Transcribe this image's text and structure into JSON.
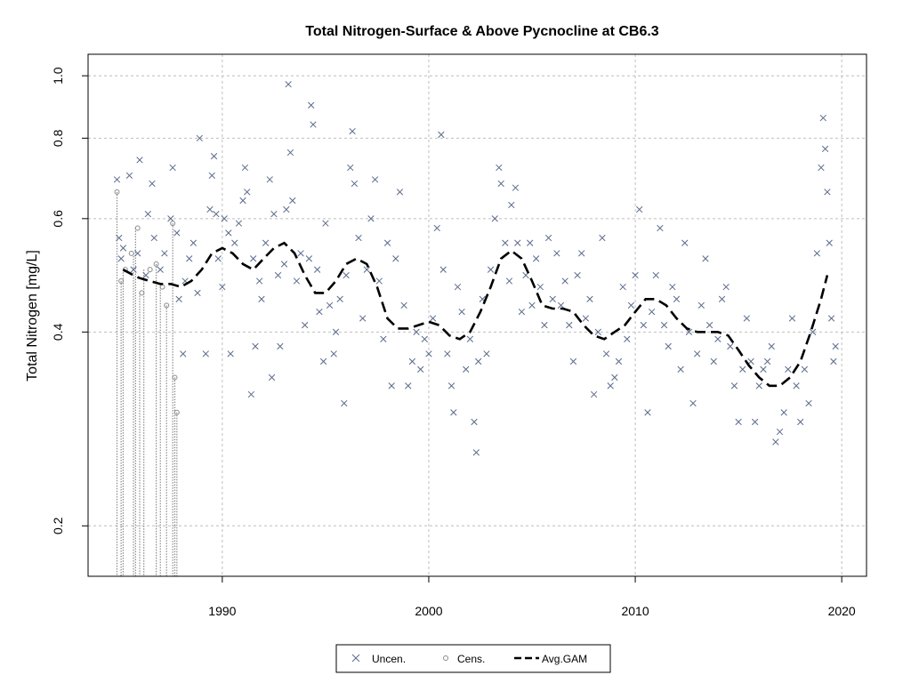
{
  "chart_data": {
    "type": "scatter",
    "title": "Total Nitrogen-Surface & Above Pycnocline at CB6.3",
    "ylabel": "Total Nitrogen [mg/L]",
    "xlabel": "",
    "x_ticks": [
      1990,
      2000,
      2010,
      2020
    ],
    "y_ticks": [
      0.2,
      0.4,
      0.6,
      0.8,
      1.0
    ],
    "y_tick_labels": [
      "0.2",
      "0.4",
      "0.6",
      "0.8",
      "1.0"
    ],
    "xlim": [
      1983.5,
      2021.2
    ],
    "ylim": [
      0.167,
      1.08
    ],
    "y_scale": "log",
    "grid": true,
    "legend": {
      "position": "bottom-center",
      "entries": [
        "Uncen.",
        "Cens.",
        "Avg.GAM"
      ]
    },
    "colors": {
      "uncen": "#5a6a8a",
      "cens": "#8a8a8a",
      "gam": "#000000",
      "grid": "#bebebe"
    },
    "series": [
      {
        "name": "Uncen.",
        "marker": "x",
        "points": [
          [
            1984.9,
            0.69
          ],
          [
            1985.0,
            0.56
          ],
          [
            1985.1,
            0.52
          ],
          [
            1985.2,
            0.54
          ],
          [
            1985.5,
            0.7
          ],
          [
            1985.7,
            0.5
          ],
          [
            1985.9,
            0.53
          ],
          [
            1986.0,
            0.74
          ],
          [
            1986.3,
            0.49
          ],
          [
            1986.4,
            0.61
          ],
          [
            1986.6,
            0.68
          ],
          [
            1986.7,
            0.56
          ],
          [
            1987.0,
            0.5
          ],
          [
            1987.2,
            0.53
          ],
          [
            1987.5,
            0.6
          ],
          [
            1987.6,
            0.72
          ],
          [
            1987.8,
            0.57
          ],
          [
            1987.9,
            0.45
          ],
          [
            1988.1,
            0.37
          ],
          [
            1988.2,
            0.48
          ],
          [
            1988.4,
            0.52
          ],
          [
            1988.6,
            0.55
          ],
          [
            1988.8,
            0.46
          ],
          [
            1988.9,
            0.8
          ],
          [
            1989.2,
            0.37
          ],
          [
            1989.4,
            0.62
          ],
          [
            1989.5,
            0.7
          ],
          [
            1989.6,
            0.75
          ],
          [
            1989.7,
            0.61
          ],
          [
            1989.8,
            0.52
          ],
          [
            1990.0,
            0.47
          ],
          [
            1990.1,
            0.6
          ],
          [
            1990.3,
            0.57
          ],
          [
            1990.4,
            0.37
          ],
          [
            1990.6,
            0.55
          ],
          [
            1990.8,
            0.59
          ],
          [
            1991.0,
            0.64
          ],
          [
            1991.1,
            0.72
          ],
          [
            1991.2,
            0.66
          ],
          [
            1991.4,
            0.32
          ],
          [
            1991.5,
            0.52
          ],
          [
            1991.6,
            0.38
          ],
          [
            1991.8,
            0.48
          ],
          [
            1991.9,
            0.45
          ],
          [
            1992.1,
            0.55
          ],
          [
            1992.3,
            0.69
          ],
          [
            1992.4,
            0.34
          ],
          [
            1992.5,
            0.61
          ],
          [
            1992.7,
            0.49
          ],
          [
            1992.8,
            0.38
          ],
          [
            1993.0,
            0.51
          ],
          [
            1993.1,
            0.62
          ],
          [
            1993.2,
            0.97
          ],
          [
            1993.3,
            0.76
          ],
          [
            1993.4,
            0.64
          ],
          [
            1993.6,
            0.48
          ],
          [
            1993.8,
            0.53
          ],
          [
            1994.0,
            0.41
          ],
          [
            1994.2,
            0.52
          ],
          [
            1994.3,
            0.9
          ],
          [
            1994.4,
            0.84
          ],
          [
            1994.6,
            0.5
          ],
          [
            1994.7,
            0.43
          ],
          [
            1994.9,
            0.36
          ],
          [
            1995.0,
            0.59
          ],
          [
            1995.2,
            0.44
          ],
          [
            1995.4,
            0.37
          ],
          [
            1995.5,
            0.4
          ],
          [
            1995.7,
            0.45
          ],
          [
            1995.9,
            0.31
          ],
          [
            1996.0,
            0.49
          ],
          [
            1996.2,
            0.72
          ],
          [
            1996.3,
            0.82
          ],
          [
            1996.4,
            0.68
          ],
          [
            1996.6,
            0.56
          ],
          [
            1996.8,
            0.42
          ],
          [
            1997.0,
            0.5
          ],
          [
            1997.2,
            0.6
          ],
          [
            1997.4,
            0.69
          ],
          [
            1997.6,
            0.48
          ],
          [
            1997.8,
            0.39
          ],
          [
            1998.0,
            0.55
          ],
          [
            1998.2,
            0.33
          ],
          [
            1998.4,
            0.52
          ],
          [
            1998.6,
            0.66
          ],
          [
            1998.8,
            0.44
          ],
          [
            1999.0,
            0.33
          ],
          [
            1999.2,
            0.36
          ],
          [
            1999.4,
            0.4
          ],
          [
            1999.6,
            0.35
          ],
          [
            1999.8,
            0.39
          ],
          [
            2000.0,
            0.37
          ],
          [
            2000.2,
            0.42
          ],
          [
            2000.4,
            0.58
          ],
          [
            2000.6,
            0.81
          ],
          [
            2000.7,
            0.5
          ],
          [
            2000.9,
            0.37
          ],
          [
            2001.1,
            0.33
          ],
          [
            2001.2,
            0.3
          ],
          [
            2001.4,
            0.47
          ],
          [
            2001.6,
            0.43
          ],
          [
            2001.8,
            0.35
          ],
          [
            2002.0,
            0.39
          ],
          [
            2002.2,
            0.29
          ],
          [
            2002.3,
            0.26
          ],
          [
            2002.4,
            0.36
          ],
          [
            2002.6,
            0.45
          ],
          [
            2002.8,
            0.37
          ],
          [
            2003.0,
            0.5
          ],
          [
            2003.2,
            0.6
          ],
          [
            2003.4,
            0.72
          ],
          [
            2003.5,
            0.68
          ],
          [
            2003.7,
            0.55
          ],
          [
            2003.9,
            0.48
          ],
          [
            2004.0,
            0.63
          ],
          [
            2004.2,
            0.67
          ],
          [
            2004.3,
            0.55
          ],
          [
            2004.5,
            0.43
          ],
          [
            2004.7,
            0.49
          ],
          [
            2004.9,
            0.55
          ],
          [
            2005.0,
            0.44
          ],
          [
            2005.2,
            0.52
          ],
          [
            2005.4,
            0.47
          ],
          [
            2005.6,
            0.41
          ],
          [
            2005.8,
            0.56
          ],
          [
            2006.0,
            0.45
          ],
          [
            2006.2,
            0.53
          ],
          [
            2006.4,
            0.44
          ],
          [
            2006.6,
            0.48
          ],
          [
            2006.8,
            0.41
          ],
          [
            2007.0,
            0.36
          ],
          [
            2007.2,
            0.49
          ],
          [
            2007.4,
            0.53
          ],
          [
            2007.6,
            0.42
          ],
          [
            2007.8,
            0.45
          ],
          [
            2008.0,
            0.32
          ],
          [
            2008.2,
            0.4
          ],
          [
            2008.4,
            0.56
          ],
          [
            2008.6,
            0.37
          ],
          [
            2008.8,
            0.33
          ],
          [
            2009.0,
            0.34
          ],
          [
            2009.2,
            0.36
          ],
          [
            2009.4,
            0.47
          ],
          [
            2009.6,
            0.39
          ],
          [
            2009.8,
            0.44
          ],
          [
            2010.0,
            0.49
          ],
          [
            2010.2,
            0.62
          ],
          [
            2010.4,
            0.41
          ],
          [
            2010.6,
            0.3
          ],
          [
            2010.8,
            0.43
          ],
          [
            2011.0,
            0.49
          ],
          [
            2011.2,
            0.58
          ],
          [
            2011.4,
            0.41
          ],
          [
            2011.6,
            0.38
          ],
          [
            2011.8,
            0.47
          ],
          [
            2012.0,
            0.45
          ],
          [
            2012.2,
            0.35
          ],
          [
            2012.4,
            0.55
          ],
          [
            2012.6,
            0.4
          ],
          [
            2012.8,
            0.31
          ],
          [
            2013.0,
            0.37
          ],
          [
            2013.2,
            0.44
          ],
          [
            2013.4,
            0.52
          ],
          [
            2013.6,
            0.41
          ],
          [
            2013.8,
            0.36
          ],
          [
            2014.0,
            0.39
          ],
          [
            2014.2,
            0.45
          ],
          [
            2014.4,
            0.47
          ],
          [
            2014.6,
            0.38
          ],
          [
            2014.8,
            0.33
          ],
          [
            2015.0,
            0.29
          ],
          [
            2015.2,
            0.35
          ],
          [
            2015.4,
            0.42
          ],
          [
            2015.6,
            0.36
          ],
          [
            2015.8,
            0.29
          ],
          [
            2016.0,
            0.33
          ],
          [
            2016.2,
            0.35
          ],
          [
            2016.4,
            0.36
          ],
          [
            2016.6,
            0.38
          ],
          [
            2016.8,
            0.27
          ],
          [
            2017.0,
            0.28
          ],
          [
            2017.2,
            0.3
          ],
          [
            2017.4,
            0.35
          ],
          [
            2017.6,
            0.42
          ],
          [
            2017.8,
            0.33
          ],
          [
            2018.0,
            0.29
          ],
          [
            2018.2,
            0.35
          ],
          [
            2018.4,
            0.31
          ],
          [
            2018.6,
            0.4
          ],
          [
            2018.8,
            0.53
          ],
          [
            2019.0,
            0.72
          ],
          [
            2019.1,
            0.86
          ],
          [
            2019.2,
            0.77
          ],
          [
            2019.3,
            0.66
          ],
          [
            2019.4,
            0.55
          ],
          [
            2019.5,
            0.42
          ],
          [
            2019.6,
            0.36
          ],
          [
            2019.7,
            0.38
          ]
        ]
      },
      {
        "name": "Cens.",
        "marker": "o",
        "points": [
          [
            1984.9,
            0.66
          ],
          [
            1985.1,
            0.48
          ],
          [
            1985.3,
            0.5
          ],
          [
            1985.6,
            0.53
          ],
          [
            1985.9,
            0.58
          ],
          [
            1986.1,
            0.46
          ],
          [
            1986.5,
            0.5
          ],
          [
            1986.8,
            0.51
          ],
          [
            1987.1,
            0.47
          ],
          [
            1987.3,
            0.44
          ],
          [
            1987.6,
            0.59
          ],
          [
            1987.7,
            0.34
          ],
          [
            1987.8,
            0.3
          ]
        ]
      }
    ],
    "censored_ranges": [
      [
        1984.9,
        0.66
      ],
      [
        1985.1,
        0.48
      ],
      [
        1985.2,
        0.5
      ],
      [
        1985.7,
        0.53
      ],
      [
        1985.8,
        0.58
      ],
      [
        1986.0,
        0.46
      ],
      [
        1986.2,
        0.5
      ],
      [
        1986.8,
        0.51
      ],
      [
        1987.0,
        0.47
      ],
      [
        1987.3,
        0.44
      ],
      [
        1987.6,
        0.59
      ],
      [
        1987.7,
        0.34
      ],
      [
        1987.8,
        0.3
      ]
    ],
    "gam": {
      "name": "Avg.GAM",
      "x": [
        1985.2,
        1985.7,
        1986.0,
        1986.5,
        1987.0,
        1987.5,
        1988.0,
        1988.5,
        1989.0,
        1989.5,
        1990.0,
        1990.5,
        1991.0,
        1991.5,
        1992.0,
        1992.5,
        1993.0,
        1993.5,
        1994.0,
        1994.5,
        1995.0,
        1995.5,
        1996.0,
        1996.5,
        1997.0,
        1997.5,
        1998.0,
        1998.5,
        1999.0,
        1999.5,
        2000.0,
        2000.5,
        2001.0,
        2001.5,
        2002.0,
        2002.5,
        2003.0,
        2003.5,
        2004.0,
        2004.5,
        2005.0,
        2005.5,
        2006.0,
        2006.5,
        2007.0,
        2007.5,
        2008.0,
        2008.5,
        2009.0,
        2009.5,
        2010.0,
        2010.5,
        2011.0,
        2011.5,
        2012.0,
        2012.5,
        2013.0,
        2013.5,
        2014.0,
        2014.5,
        2015.0,
        2015.5,
        2016.0,
        2016.5,
        2017.0,
        2017.5,
        2018.0,
        2018.5,
        2019.0,
        2019.3
      ],
      "y": [
        0.5,
        0.49,
        0.485,
        0.48,
        0.475,
        0.475,
        0.47,
        0.48,
        0.5,
        0.53,
        0.54,
        0.53,
        0.51,
        0.5,
        0.52,
        0.54,
        0.55,
        0.53,
        0.49,
        0.46,
        0.46,
        0.48,
        0.51,
        0.52,
        0.51,
        0.47,
        0.42,
        0.405,
        0.405,
        0.41,
        0.415,
        0.41,
        0.395,
        0.39,
        0.4,
        0.43,
        0.47,
        0.52,
        0.535,
        0.52,
        0.48,
        0.44,
        0.435,
        0.435,
        0.43,
        0.41,
        0.395,
        0.39,
        0.4,
        0.41,
        0.43,
        0.45,
        0.45,
        0.44,
        0.42,
        0.405,
        0.4,
        0.4,
        0.4,
        0.395,
        0.375,
        0.355,
        0.34,
        0.33,
        0.33,
        0.34,
        0.36,
        0.4,
        0.45,
        0.49
      ]
    }
  }
}
